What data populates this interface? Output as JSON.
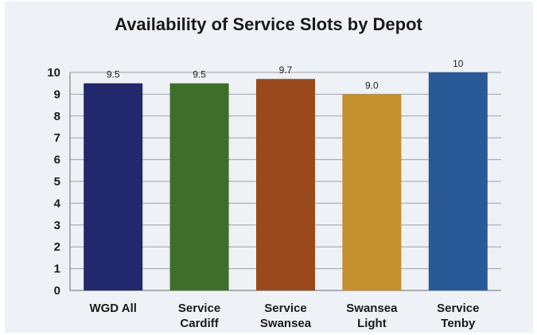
{
  "chart_data": {
    "type": "bar",
    "title": "Availability of Service Slots by Depot",
    "xlabel": "",
    "ylabel": "",
    "ylim": [
      0,
      10
    ],
    "yticks": [
      0,
      1,
      2,
      3,
      4,
      5,
      6,
      7,
      8,
      9,
      10
    ],
    "grid": true,
    "categories": [
      [
        "WGD All"
      ],
      [
        "Service",
        "Cardiff"
      ],
      [
        "Service",
        "Swansea"
      ],
      [
        "Swansea",
        "Light"
      ],
      [
        "Service",
        "Tenby"
      ]
    ],
    "values": [
      9.5,
      9.5,
      9.7,
      9.0,
      10
    ],
    "data_labels": [
      "9.5",
      "9.5",
      "9.7",
      "9.0",
      "10"
    ],
    "colors": [
      "#21286b",
      "#3e6e2a",
      "#984a1c",
      "#c4902e",
      "#295a97"
    ]
  }
}
